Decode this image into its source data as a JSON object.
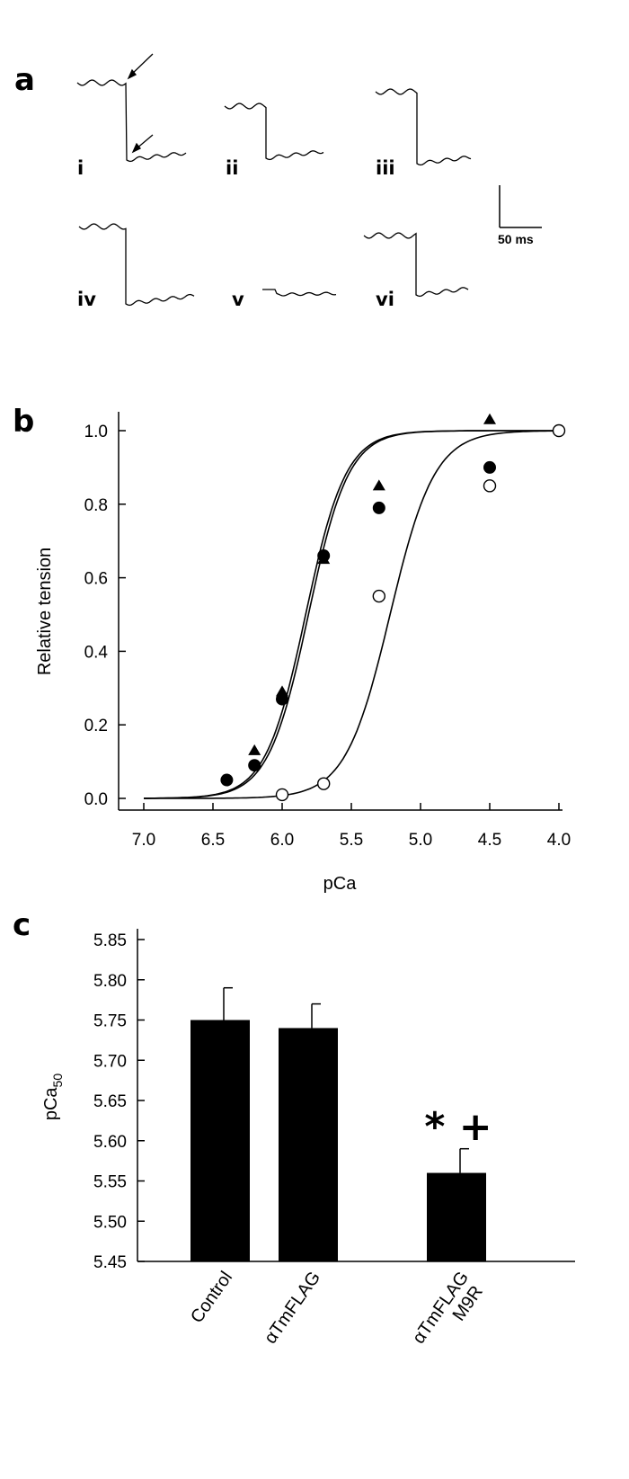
{
  "panels": {
    "a": "a",
    "b": "b",
    "c": "c"
  },
  "traces": {
    "labels": [
      "i",
      "ii",
      "iii",
      "iv",
      "v",
      "vi"
    ],
    "scale_bar_label": "50 ms"
  },
  "chart_data": [
    {
      "type": "scatter",
      "panel": "b",
      "xlabel": "pCa",
      "ylabel": "Relative tension",
      "xlim": [
        7.0,
        4.0
      ],
      "ylim": [
        0.0,
        1.05
      ],
      "x_reversed": true,
      "xticks": [
        "7.0",
        "6.5",
        "6.0",
        "5.5",
        "5.0",
        "4.5",
        "4.0"
      ],
      "yticks": [
        "0.0",
        "0.2",
        "0.4",
        "0.6",
        "0.8",
        "1.0"
      ],
      "series": [
        {
          "marker": "filled-circle",
          "x": [
            6.4,
            6.2,
            6.0,
            5.7,
            5.3,
            4.5
          ],
          "y": [
            0.05,
            0.09,
            0.27,
            0.66,
            0.79,
            0.9
          ]
        },
        {
          "marker": "filled-triangle",
          "x": [
            6.2,
            6.0,
            5.7,
            5.3,
            4.5
          ],
          "y": [
            0.13,
            0.29,
            0.65,
            0.85,
            1.03
          ]
        },
        {
          "marker": "open-circle",
          "x": [
            6.0,
            5.7,
            5.3,
            4.5,
            4.0
          ],
          "y": [
            0.01,
            0.04,
            0.55,
            0.85,
            1.0
          ]
        }
      ],
      "fit_curves": [
        {
          "pCa50": 5.83,
          "hill": 3.0
        },
        {
          "pCa50": 5.81,
          "hill": 3.0
        },
        {
          "pCa50": 5.22,
          "hill": 2.7
        }
      ]
    },
    {
      "type": "bar",
      "panel": "c",
      "ylabel": "pCa",
      "ylabel_subscript": "50",
      "categories": [
        "Control",
        "αTmFLAG",
        "αTmFLAG M9R"
      ],
      "values": [
        5.75,
        5.74,
        5.56
      ],
      "errors": [
        0.04,
        0.03,
        0.03
      ],
      "ylim": [
        5.45,
        5.85
      ],
      "yticks": [
        "5.45",
        "5.50",
        "5.55",
        "5.60",
        "5.65",
        "5.70",
        "5.75",
        "5.80",
        "5.85"
      ],
      "annotation": "* +"
    }
  ]
}
